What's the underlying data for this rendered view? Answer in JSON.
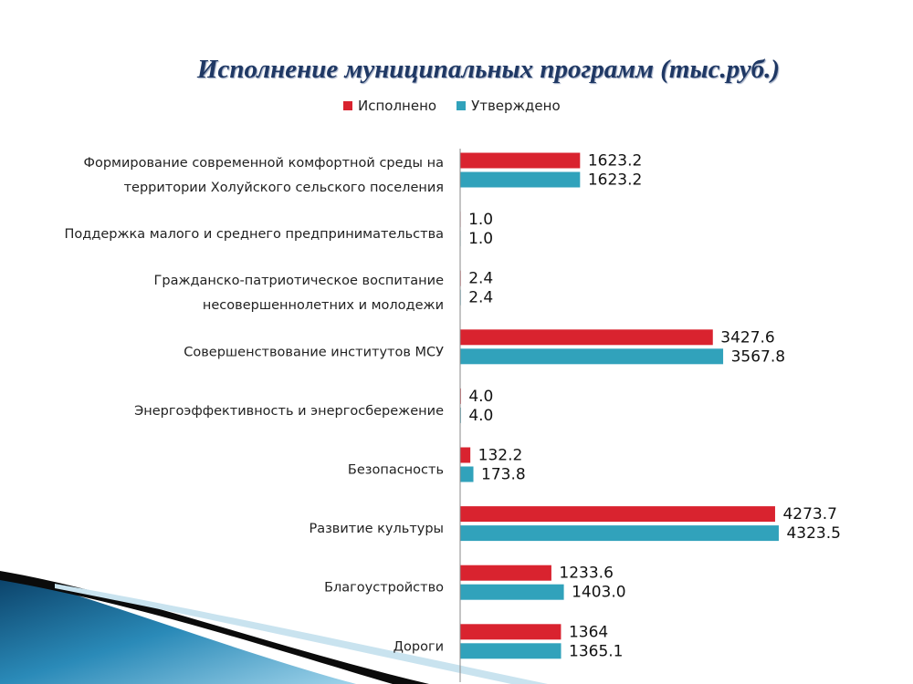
{
  "chart_data": {
    "type": "bar",
    "orientation": "horizontal",
    "title": "Исполнение муниципальных программ (тыс.руб.)",
    "legend_position": "top",
    "grid": false,
    "xlim": [
      0,
      4500
    ],
    "categories": [
      [
        "Формирование современной комфортной среды на",
        "территории Холуйского сельского поселения"
      ],
      [
        "Поддержка малого и среднего предпринимательства"
      ],
      [
        "Гражданско-патриотическое воспитание",
        "несовершеннолетних и молодежи"
      ],
      [
        "Совершенствование институтов МСУ"
      ],
      [
        "Энергоэффективность и энергосбережение"
      ],
      [
        "Безопасность"
      ],
      [
        "Развитие культуры"
      ],
      [
        "Благоустройство"
      ],
      [
        "Дороги"
      ]
    ],
    "series": [
      {
        "name": "Исполнено",
        "color": "#d9232f",
        "values": [
          1623.2,
          1.0,
          2.4,
          3427.6,
          4.0,
          132.2,
          4273.7,
          1233.6,
          1364
        ],
        "labels": [
          "1623.2",
          "1.0",
          "2.4",
          "3427.6",
          "4.0",
          "132.2",
          "4273.7",
          "1233.6",
          "1364"
        ]
      },
      {
        "name": "Утверждено",
        "color": "#31a2bb",
        "values": [
          1623.2,
          1.0,
          2.4,
          3567.8,
          4.0,
          173.8,
          4323.5,
          1403.0,
          1365.1
        ],
        "labels": [
          "1623.2",
          "1.0",
          "2.4",
          "3567.8",
          "4.0",
          "173.8",
          "4323.5",
          "1403.0",
          "1365.1"
        ]
      }
    ]
  }
}
